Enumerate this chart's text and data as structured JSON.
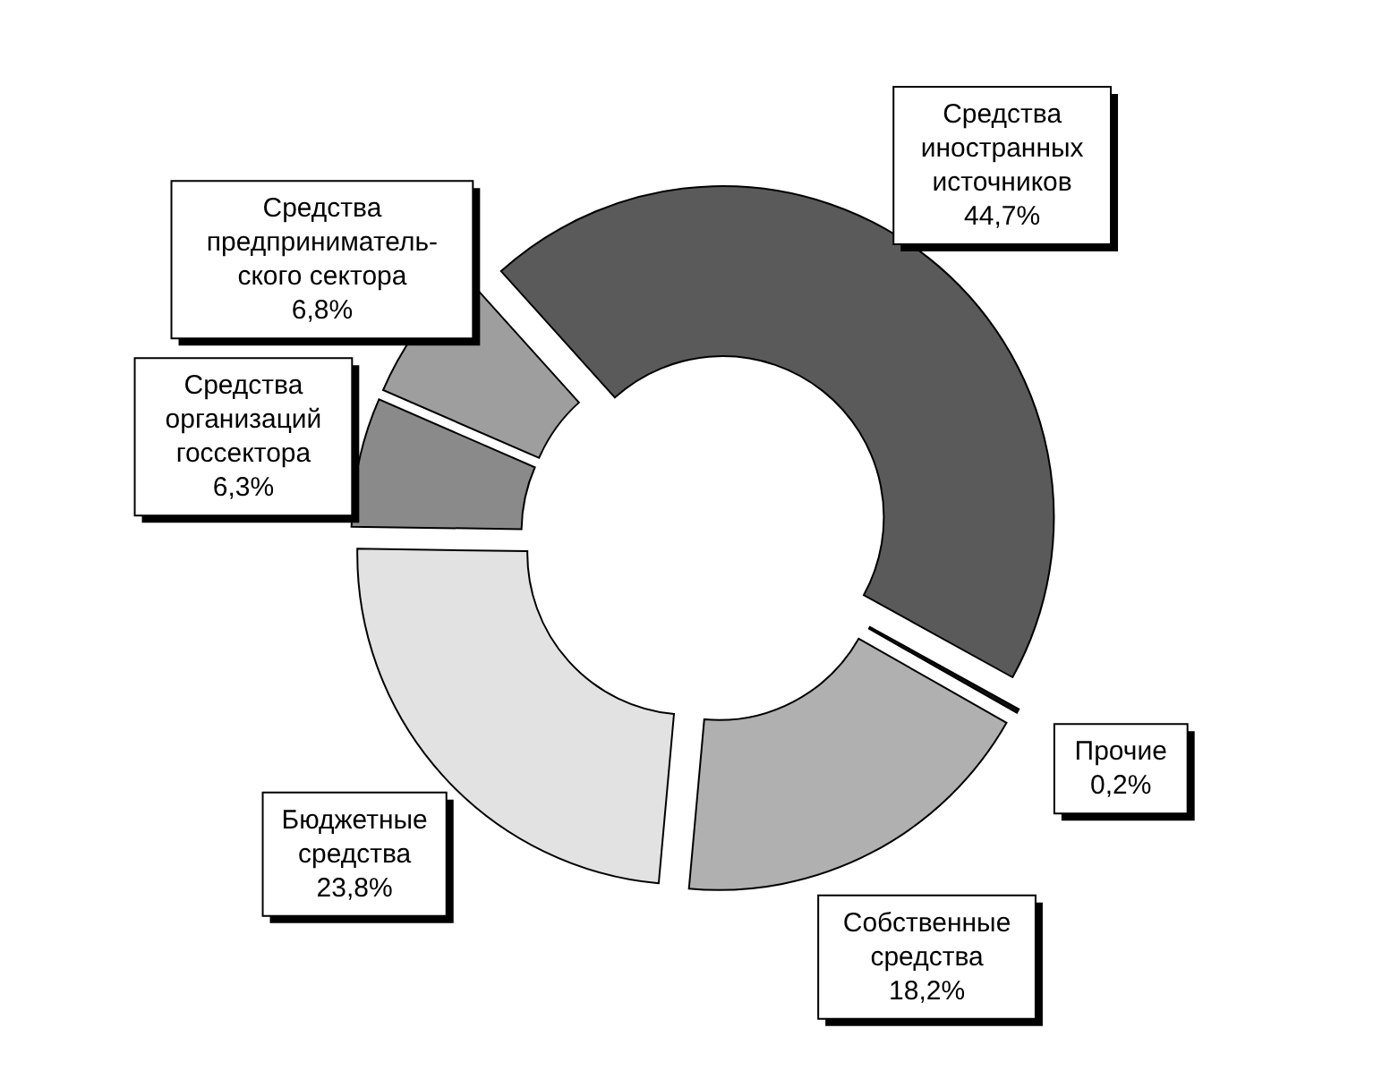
{
  "chart_data": {
    "type": "donut",
    "categories": [
      "Средства\nиностранных\nисточников",
      "Прочие",
      "Собственные\nсредства",
      "Бюджетные\nсредства",
      "Средства\nорганизаций\nгоссектора",
      "Средства\nпредприниматель-\nского сектора"
    ],
    "values": [
      44.7,
      0.2,
      18.2,
      23.8,
      6.3,
      6.8
    ],
    "value_labels": [
      "44,7%",
      "0,2%",
      "18,2%",
      "23,8%",
      "6,3%",
      "6,8%"
    ],
    "colors": [
      "#5a5a5a",
      "#111111",
      "#b0b0b0",
      "#e2e2e2",
      "#8a8a8a",
      "#9e9e9e"
    ]
  }
}
